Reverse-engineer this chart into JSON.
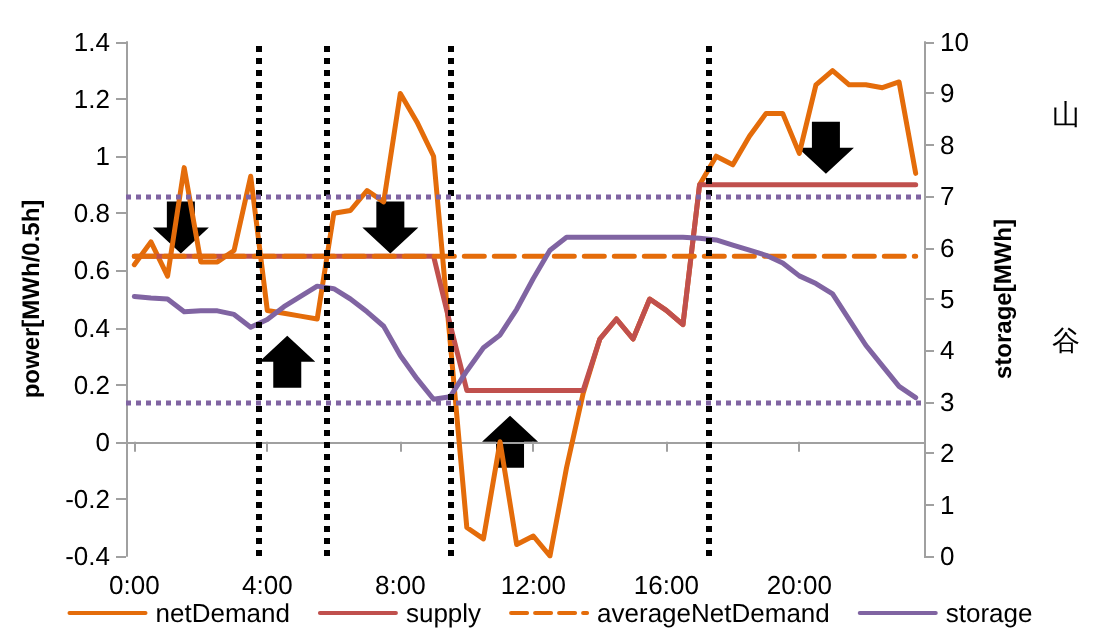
{
  "chart_data": {
    "type": "line",
    "ylabel": "power[MWh/0.5h]",
    "y2label": "storage[MWh]",
    "annotations": [
      "山",
      "谷"
    ],
    "x": [
      0,
      0.5,
      1,
      1.5,
      2,
      2.5,
      3,
      3.5,
      4,
      4.5,
      5,
      5.5,
      6,
      6.5,
      7,
      7.5,
      8,
      8.5,
      9,
      9.5,
      10,
      10.5,
      11,
      11.5,
      12,
      12.5,
      13,
      13.5,
      14,
      14.5,
      15,
      15.5,
      16,
      16.5,
      17,
      17.5,
      18,
      18.5,
      19,
      19.5,
      20,
      20.5,
      21,
      21.5,
      22,
      22.5,
      23,
      23.5
    ],
    "xlim": [
      -0.25,
      23.75
    ],
    "xticks": [
      {
        "value": 0,
        "label": "0:00"
      },
      {
        "value": 4,
        "label": "4:00"
      },
      {
        "value": 8,
        "label": "8:00"
      },
      {
        "value": 12,
        "label": "12:00"
      },
      {
        "value": 16,
        "label": "16:00"
      },
      {
        "value": 20,
        "label": "20:00"
      }
    ],
    "ylim": [
      -0.4,
      1.4
    ],
    "yticks": [
      -0.4,
      -0.2,
      0,
      0.2,
      0.4,
      0.6,
      0.8,
      1,
      1.2,
      1.4
    ],
    "y2lim": [
      0,
      10
    ],
    "y2ticks": [
      0,
      1,
      2,
      3,
      4,
      5,
      6,
      7,
      8,
      9,
      10
    ],
    "legend": "bottom",
    "marker": "none",
    "series": [
      {
        "name": "netDemand",
        "color": "#e46c0a",
        "line_style": "solid",
        "values": [
          0.62,
          0.7,
          0.58,
          0.96,
          0.63,
          0.63,
          0.67,
          0.93,
          0.46,
          0.45,
          0.44,
          0.43,
          0.8,
          0.81,
          0.88,
          0.84,
          1.22,
          1.12,
          1.0,
          0.35,
          -0.3,
          -0.34,
          0.0,
          -0.36,
          -0.33,
          -0.4,
          -0.09,
          0.17,
          0.36,
          0.43,
          0.36,
          0.5,
          0.46,
          0.41,
          0.9,
          1.0,
          0.97,
          1.07,
          1.15,
          1.15,
          1.01,
          1.25,
          1.3,
          1.25,
          1.25,
          1.24,
          1.26,
          0.94
        ]
      },
      {
        "name": "supply",
        "color": "#c0504d",
        "line_style": "solid",
        "values": [
          0.65,
          0.65,
          0.65,
          0.65,
          0.65,
          0.65,
          0.65,
          0.65,
          0.65,
          0.65,
          0.65,
          0.65,
          0.65,
          0.65,
          0.65,
          0.65,
          0.65,
          0.65,
          0.65,
          0.41,
          0.18,
          0.18,
          0.18,
          0.18,
          0.18,
          0.18,
          0.18,
          0.18,
          0.36,
          0.43,
          0.36,
          0.5,
          0.46,
          0.41,
          0.9,
          0.9,
          0.9,
          0.9,
          0.9,
          0.9,
          0.9,
          0.9,
          0.9,
          0.9,
          0.9,
          0.9,
          0.9,
          0.9
        ]
      },
      {
        "name": "averageNetDemand",
        "color": "#e46c0a",
        "line_style": "dashed",
        "values": [
          0.65,
          0.65,
          0.65,
          0.65,
          0.65,
          0.65,
          0.65,
          0.65,
          0.65,
          0.65,
          0.65,
          0.65,
          0.65,
          0.65,
          0.65,
          0.65,
          0.65,
          0.65,
          0.65,
          0.65,
          0.65,
          0.65,
          0.65,
          0.65,
          0.65,
          0.65,
          0.65,
          0.65,
          0.65,
          0.65,
          0.65,
          0.65,
          0.65,
          0.65,
          0.65,
          0.65,
          0.65,
          0.65,
          0.65,
          0.65,
          0.65,
          0.65,
          0.65,
          0.65,
          0.65,
          0.65,
          0.65,
          0.65
        ]
      },
      {
        "name": "storage",
        "color": "#8064a2",
        "line_style": "solid",
        "axis": "y2",
        "values": [
          5.05,
          5.02,
          5.0,
          4.75,
          4.77,
          4.77,
          4.7,
          4.45,
          4.6,
          4.85,
          5.05,
          5.25,
          5.2,
          5.0,
          4.75,
          4.47,
          3.9,
          3.45,
          3.05,
          3.1,
          3.6,
          4.05,
          4.3,
          4.8,
          5.4,
          5.95,
          6.2,
          6.2,
          6.2,
          6.2,
          6.2,
          6.2,
          6.2,
          6.2,
          6.18,
          6.15,
          6.05,
          5.95,
          5.85,
          5.7,
          5.45,
          5.3,
          5.1,
          4.6,
          4.1,
          3.7,
          3.3,
          3.08
        ]
      }
    ],
    "ref_lines": [
      {
        "axis": "x",
        "value": 3.75,
        "color": "#000000",
        "line_style": "dotted"
      },
      {
        "axis": "x",
        "value": 5.75,
        "color": "#000000",
        "line_style": "dotted"
      },
      {
        "axis": "x",
        "value": 9.5,
        "color": "#000000",
        "line_style": "dotted"
      },
      {
        "axis": "x",
        "value": 17.25,
        "color": "#000000",
        "line_style": "dotted"
      },
      {
        "axis": "y2",
        "value": 7,
        "color": "#8064a2",
        "line_style": "dotted"
      },
      {
        "axis": "y2",
        "value": 3,
        "color": "#8064a2",
        "line_style": "dotted"
      }
    ]
  }
}
